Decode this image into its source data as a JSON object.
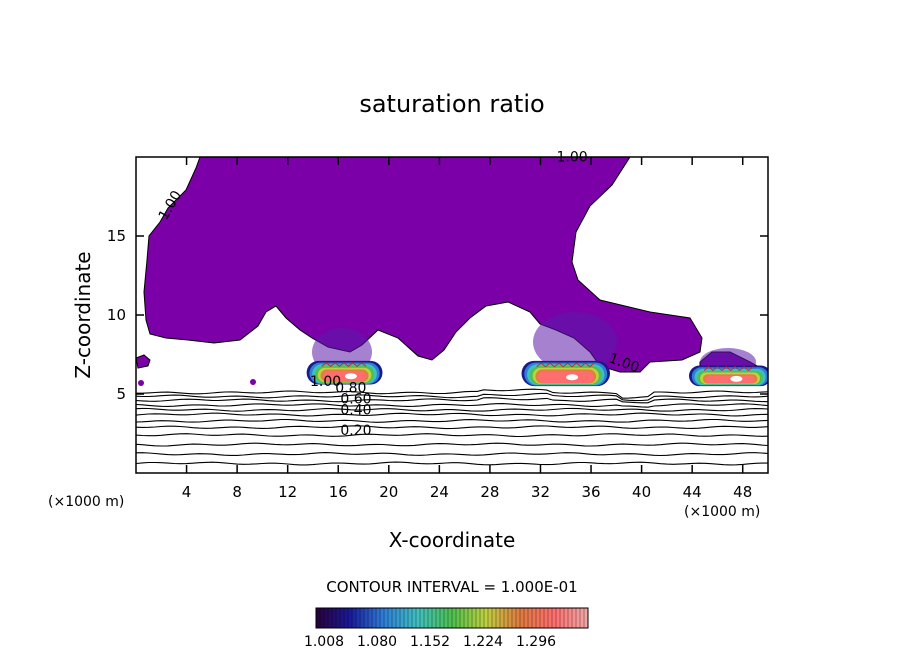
{
  "chart_data": {
    "type": "contour",
    "title": "saturation ratio",
    "xlabel": "X-coordinate",
    "ylabel": "Z-coordinate",
    "x_unit_left": "(×1000 m)",
    "x_unit_right": "(×1000 m)",
    "xlim": [
      0,
      50
    ],
    "ylim": [
      0,
      20
    ],
    "x_ticks": [
      4,
      8,
      12,
      16,
      20,
      24,
      28,
      32,
      36,
      40,
      44,
      48
    ],
    "y_ticks": [
      5,
      10,
      15
    ],
    "contour_interval_text": "CONTOUR INTERVAL = 1.000E-01",
    "contour_labels": [
      {
        "text": "1.00",
        "x": 34.5,
        "y": 19.7
      },
      {
        "text": "1.00",
        "x": 3.0,
        "y": 16.8
      },
      {
        "text": "1.00",
        "x": 38.5,
        "y": 6.7
      },
      {
        "text": "1.00",
        "x": 15.0,
        "y": 5.5
      },
      {
        "text": "0.80",
        "x": 17.0,
        "y": 5.1
      },
      {
        "text": "0.60",
        "x": 17.4,
        "y": 4.4
      },
      {
        "text": "0.40",
        "x": 17.4,
        "y": 3.7
      },
      {
        "text": "0.20",
        "x": 17.4,
        "y": 2.4
      }
    ],
    "low_level_lines_z": [
      0.6,
      1.2,
      1.8,
      2.4,
      2.9,
      3.3,
      3.7,
      4.0,
      4.3,
      4.6,
      4.85,
      5.1
    ],
    "cells": [
      {
        "x_center": 16.5,
        "base_z": 5.6,
        "width": 6.0,
        "height": 1.5
      },
      {
        "x_center": 34.0,
        "base_z": 5.5,
        "width": 7.0,
        "height": 1.6
      },
      {
        "x_center": 47.0,
        "base_z": 5.5,
        "width": 6.5,
        "height": 1.3
      }
    ],
    "colorbar": {
      "tick_labels": [
        "1.008",
        "1.080",
        "1.152",
        "1.224",
        "1.296"
      ],
      "colors": [
        "#2a003a",
        "#1a1a9a",
        "#2f7fd8",
        "#3fc0c0",
        "#4ec04e",
        "#c0d040",
        "#e07a40",
        "#ff6e6e",
        "#f0a8a8"
      ]
    },
    "fill_color": "#7b00a8"
  }
}
